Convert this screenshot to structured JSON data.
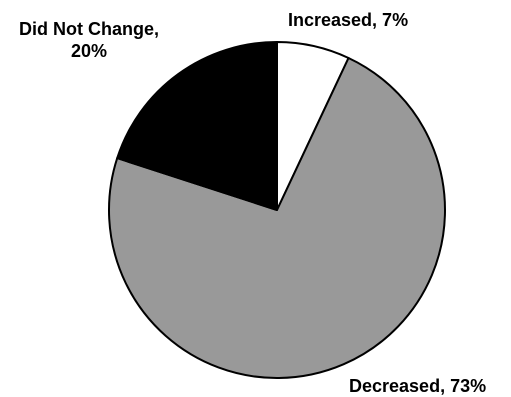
{
  "chart_data": {
    "type": "pie",
    "slices": [
      {
        "label": "Increased",
        "value": 7,
        "label_text": "Increased, 7%",
        "color": "#ffffff"
      },
      {
        "label": "Decreased",
        "value": 73,
        "label_text": "Decreased, 73%",
        "color": "#999999"
      },
      {
        "label": "Did Not Change",
        "value": 20,
        "label_text_line1": "Did Not Change,",
        "label_text_line2": "20%",
        "color": "#000000"
      }
    ],
    "start": "12 o'clock",
    "direction": "clockwise",
    "border_color": "#000000",
    "legend": "none"
  }
}
